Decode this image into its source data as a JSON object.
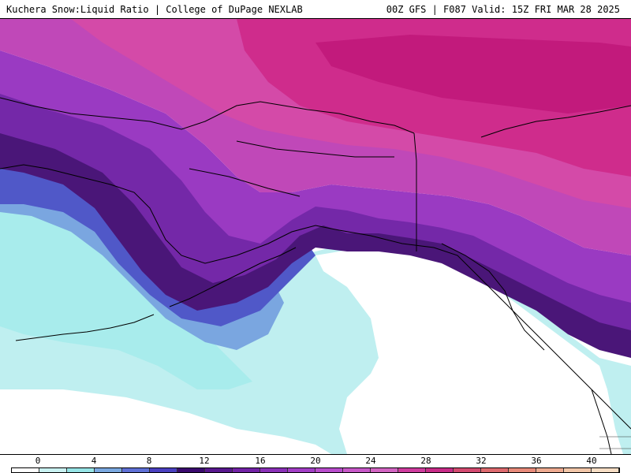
{
  "header": {
    "left_title": "Kuchera Snow:Liquid Ratio | College of DuPage NEXLAB",
    "right_title": "00Z GFS | F087 Valid: 15Z FRI MAR 28 2025"
  },
  "map": {
    "region": "Alaska and Northeast Pacific",
    "colors": {
      "very_low": "#a8ecec",
      "low": "#7ad6e4",
      "mid_blue": "#6a86d8",
      "blue": "#4e52c4",
      "deep_purple": "#4a1678",
      "purple": "#7428a8",
      "violet": "#9a3ac2",
      "magenta": "#c040b8",
      "pink": "#d44aa8",
      "hot_pink": "#d02a8c",
      "land_lines": "#000000"
    }
  },
  "colorbar": {
    "ticks": [
      "0",
      "4",
      "8",
      "12",
      "16",
      "20",
      "24",
      "28",
      "32",
      "36",
      "40"
    ],
    "swatches": [
      "#ffffff",
      "#c9f2f2",
      "#96e4e6",
      "#7aa8e0",
      "#5f70d6",
      "#4a40c0",
      "#3a0a6e",
      "#58178e",
      "#7222a6",
      "#8a30b8",
      "#a23ec6",
      "#b84ccc",
      "#c758c8",
      "#d264c2",
      "#cf3c9e",
      "#c82c88",
      "#d44a70",
      "#de6a6e",
      "#e88a7a",
      "#eeaa90",
      "#f2c6a8",
      "#f6ddc4"
    ]
  }
}
